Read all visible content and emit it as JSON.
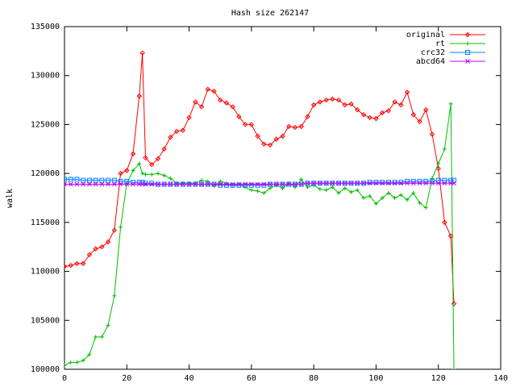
{
  "chart_data": {
    "type": "line",
    "title": "Hash size 262147",
    "ylabel": "walk",
    "xlim": [
      0,
      140
    ],
    "ylim": [
      100000,
      135000
    ],
    "xticks": [
      0,
      20,
      40,
      60,
      80,
      100,
      120,
      140
    ],
    "yticks": [
      100000,
      105000,
      110000,
      115000,
      120000,
      125000,
      130000,
      135000
    ],
    "legend": "upper right",
    "x": [
      0,
      2,
      4,
      6,
      8,
      10,
      12,
      14,
      16,
      18,
      20,
      22,
      24,
      25,
      26,
      28,
      30,
      32,
      34,
      36,
      38,
      40,
      42,
      44,
      46,
      48,
      50,
      52,
      54,
      56,
      58,
      60,
      62,
      64,
      66,
      68,
      70,
      72,
      74,
      76,
      78,
      80,
      82,
      84,
      86,
      88,
      90,
      92,
      94,
      96,
      98,
      100,
      102,
      104,
      106,
      108,
      110,
      112,
      114,
      116,
      118,
      120,
      122,
      124,
      125
    ],
    "series": [
      {
        "name": "original",
        "color": "#ff0000",
        "marker": "diamond",
        "values": [
          110500,
          110600,
          110800,
          110800,
          111700,
          112300,
          112500,
          113000,
          114200,
          120000,
          120300,
          122000,
          127900,
          132300,
          121600,
          120900,
          121500,
          122500,
          123700,
          124300,
          124400,
          125700,
          127300,
          126800,
          128600,
          128400,
          127500,
          127200,
          126800,
          125800,
          125000,
          125000,
          123800,
          123000,
          122900,
          123500,
          123800,
          124800,
          124700,
          124800,
          125800,
          127000,
          127300,
          127500,
          127600,
          127500,
          127000,
          127100,
          126500,
          126000,
          125700,
          125600,
          126200,
          126400,
          127300,
          127000,
          128300,
          126000,
          125300,
          126500,
          124000,
          120500,
          115000,
          113600,
          106700
        ]
      },
      {
        "name": "rt",
        "color": "#00c000",
        "marker": "plus",
        "values": [
          100400,
          100700,
          100700,
          100900,
          101500,
          103300,
          103300,
          104500,
          107500,
          114500,
          119000,
          120300,
          121000,
          120000,
          119900,
          119900,
          120000,
          119800,
          119500,
          119000,
          119000,
          119000,
          119000,
          119300,
          119200,
          118700,
          119200,
          119000,
          118800,
          118900,
          118600,
          118300,
          118200,
          118000,
          118500,
          118800,
          118500,
          119000,
          118600,
          119400,
          118600,
          118800,
          118400,
          118300,
          118600,
          118000,
          118500,
          118100,
          118300,
          117500,
          117700,
          116900,
          117500,
          118000,
          117500,
          117800,
          117300,
          118000,
          117000,
          116500,
          119500,
          121000,
          122500,
          127100,
          100000
        ]
      },
      {
        "name": "crc32",
        "color": "#0080ff",
        "marker": "square",
        "values": [
          119400,
          119400,
          119400,
          119300,
          119300,
          119300,
          119300,
          119300,
          119300,
          119200,
          119200,
          119100,
          119100,
          119100,
          119000,
          119000,
          118900,
          118900,
          118900,
          118900,
          118900,
          118900,
          118900,
          118900,
          118900,
          118900,
          118800,
          118800,
          118800,
          118800,
          118800,
          118800,
          118800,
          118800,
          118900,
          118900,
          118900,
          118900,
          118900,
          118900,
          119000,
          119000,
          119000,
          119000,
          119000,
          119000,
          119000,
          119000,
          119000,
          119000,
          119100,
          119100,
          119100,
          119100,
          119100,
          119100,
          119200,
          119200,
          119200,
          119200,
          119200,
          119300,
          119300,
          119300,
          119300
        ]
      },
      {
        "name": "abcd64",
        "color": "#c000ff",
        "marker": "cross",
        "values": [
          118900,
          118900,
          118900,
          118900,
          118900,
          118900,
          118900,
          118900,
          118900,
          118900,
          118900,
          118900,
          118900,
          118900,
          118900,
          118900,
          118900,
          118900,
          118900,
          118900,
          118900,
          118900,
          118900,
          118900,
          118900,
          118900,
          118900,
          118900,
          118900,
          118900,
          118900,
          118900,
          118900,
          118900,
          118900,
          118900,
          118900,
          118900,
          118900,
          118900,
          119000,
          119000,
          119000,
          119000,
          119000,
          119000,
          119000,
          119000,
          119000,
          119000,
          119000,
          119000,
          119000,
          119000,
          119000,
          119000,
          119000,
          119000,
          119000,
          119000,
          119000,
          119000,
          119000,
          119000,
          119000
        ]
      }
    ]
  }
}
